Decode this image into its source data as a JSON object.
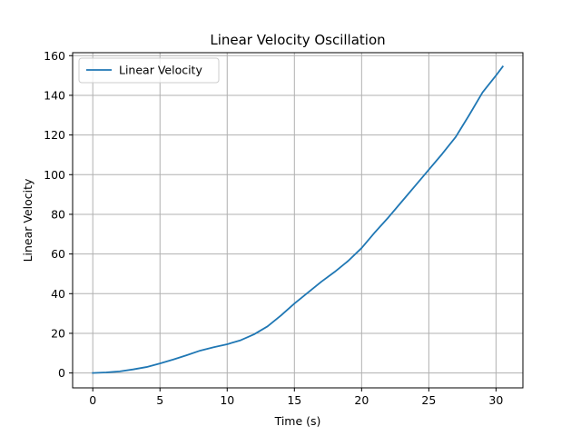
{
  "chart_data": {
    "type": "line",
    "title": "Linear Velocity Oscillation",
    "xlabel": "Time (s)",
    "ylabel": "Linear Velocity",
    "xlim": [
      -1.5,
      32.0
    ],
    "ylim": [
      -7.5,
      161.5
    ],
    "xticks": [
      0,
      5,
      10,
      15,
      20,
      25,
      30
    ],
    "yticks": [
      0,
      20,
      40,
      60,
      80,
      100,
      120,
      140,
      160
    ],
    "grid": true,
    "legend_position": "upper-left",
    "series": [
      {
        "name": "Linear Velocity",
        "color": "#1f77b4",
        "x": [
          0,
          1,
          2,
          3,
          4,
          5,
          6,
          7,
          8,
          9,
          10,
          11,
          12,
          13,
          14,
          15,
          16,
          17,
          18,
          19,
          20,
          21,
          22,
          23,
          24,
          25,
          26,
          27,
          28,
          29,
          30,
          30.5
        ],
        "y": [
          0,
          0.3,
          0.8,
          1.8,
          3.0,
          4.8,
          6.8,
          9.0,
          11.3,
          13.0,
          14.5,
          16.5,
          19.5,
          23.5,
          29.0,
          35.0,
          40.5,
          46.0,
          51.0,
          56.5,
          63.0,
          71.0,
          78.5,
          86.5,
          94.5,
          102.5,
          110.5,
          119.0,
          130.0,
          141.5,
          150.0,
          154.5
        ]
      }
    ]
  }
}
